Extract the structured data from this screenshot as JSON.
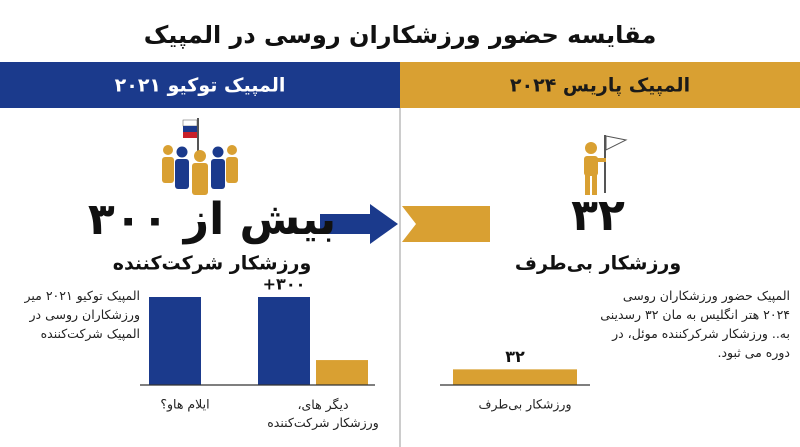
{
  "title": "مقایسه حضور ورزشکاران روسی در المپیک",
  "panels": [
    {
      "header": "المپیک توکیو ۲۰۲۱",
      "headline": "بیش از ۳۰۰",
      "subheadline": "ورزشکار شرکت‌کننده",
      "note": "المپیک توکیو ۲۰۲۱ میر ورزشکاران روسی در المپیک شرکت‌کننده",
      "chart": {
        "type": "bar",
        "categories": [
          "ایلام هاو؟",
          "دیگر های، ورزشکار شرکت‌کننده"
        ],
        "series": [
          {
            "color": "#1b3a8c",
            "values": [
              300,
              300
            ],
            "value_labels": [
              null,
              "+۳۰۰"
            ]
          },
          {
            "color": "#d9a032",
            "values": [
              null,
              85
            ]
          }
        ],
        "ylim": [
          0,
          300
        ]
      }
    },
    {
      "header": "المپیک پاریس ۲۰۲۴",
      "headline": "۳۲",
      "subheadline": "ورزشکار بی‌طرف",
      "note": "المپیک حضور ورزشکاران روسی ۲۰۲۴ هتر انگلیس به مان ۳۲ رسدینی به.. ورزشکار شرکرکننده موئل، در دوره می ثبود.",
      "chart": {
        "type": "bar",
        "categories": [
          "ورزشکار بی‌طرف"
        ],
        "series": [
          {
            "color": "#d9a032",
            "values": [
              32
            ],
            "value_labels": [
              "۳۲"
            ]
          }
        ],
        "ylim": [
          0,
          180
        ]
      }
    }
  ]
}
